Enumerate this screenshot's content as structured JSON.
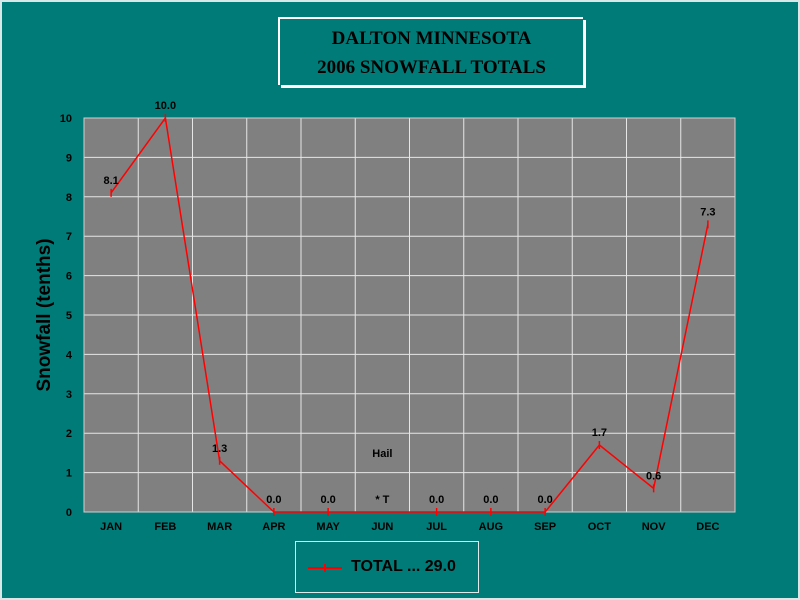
{
  "title": {
    "line1": "DALTON MINNESOTA",
    "line2": "2006 SNOWFALL TOTALS"
  },
  "colors": {
    "background": "#007b78",
    "plot_area": "#808080",
    "grid": "#e6e6e6",
    "series": "#ff0000"
  },
  "chart_data": {
    "type": "line",
    "ylabel": "Snowfall (tenths)",
    "xlabel": "",
    "ylim": [
      0,
      10
    ],
    "yticks": [
      "0",
      "1",
      "2",
      "3",
      "4",
      "5",
      "6",
      "7",
      "8",
      "9",
      "10"
    ],
    "grid": true,
    "categories": [
      "JAN",
      "FEB",
      "MAR",
      "APR",
      "MAY",
      "JUN",
      "JUL",
      "AUG",
      "SEP",
      "OCT",
      "NOV",
      "DEC"
    ],
    "series": [
      {
        "name": "TOTAL ... 29.0",
        "values": [
          8.1,
          10.0,
          1.3,
          0.0,
          0.0,
          null,
          0.0,
          0.0,
          0.0,
          1.7,
          0.6,
          7.3
        ],
        "data_labels": [
          "8.1",
          "10.0",
          "1.3",
          "0.0",
          "0.0",
          "* T",
          "0.0",
          "0.0",
          "0.0",
          "1.7",
          "0.6",
          "7.3"
        ]
      }
    ],
    "annotations": [
      {
        "text": "Hail",
        "category": "JUN"
      }
    ],
    "legend": {
      "position": "bottom",
      "label": "TOTAL ... 29.0"
    }
  }
}
